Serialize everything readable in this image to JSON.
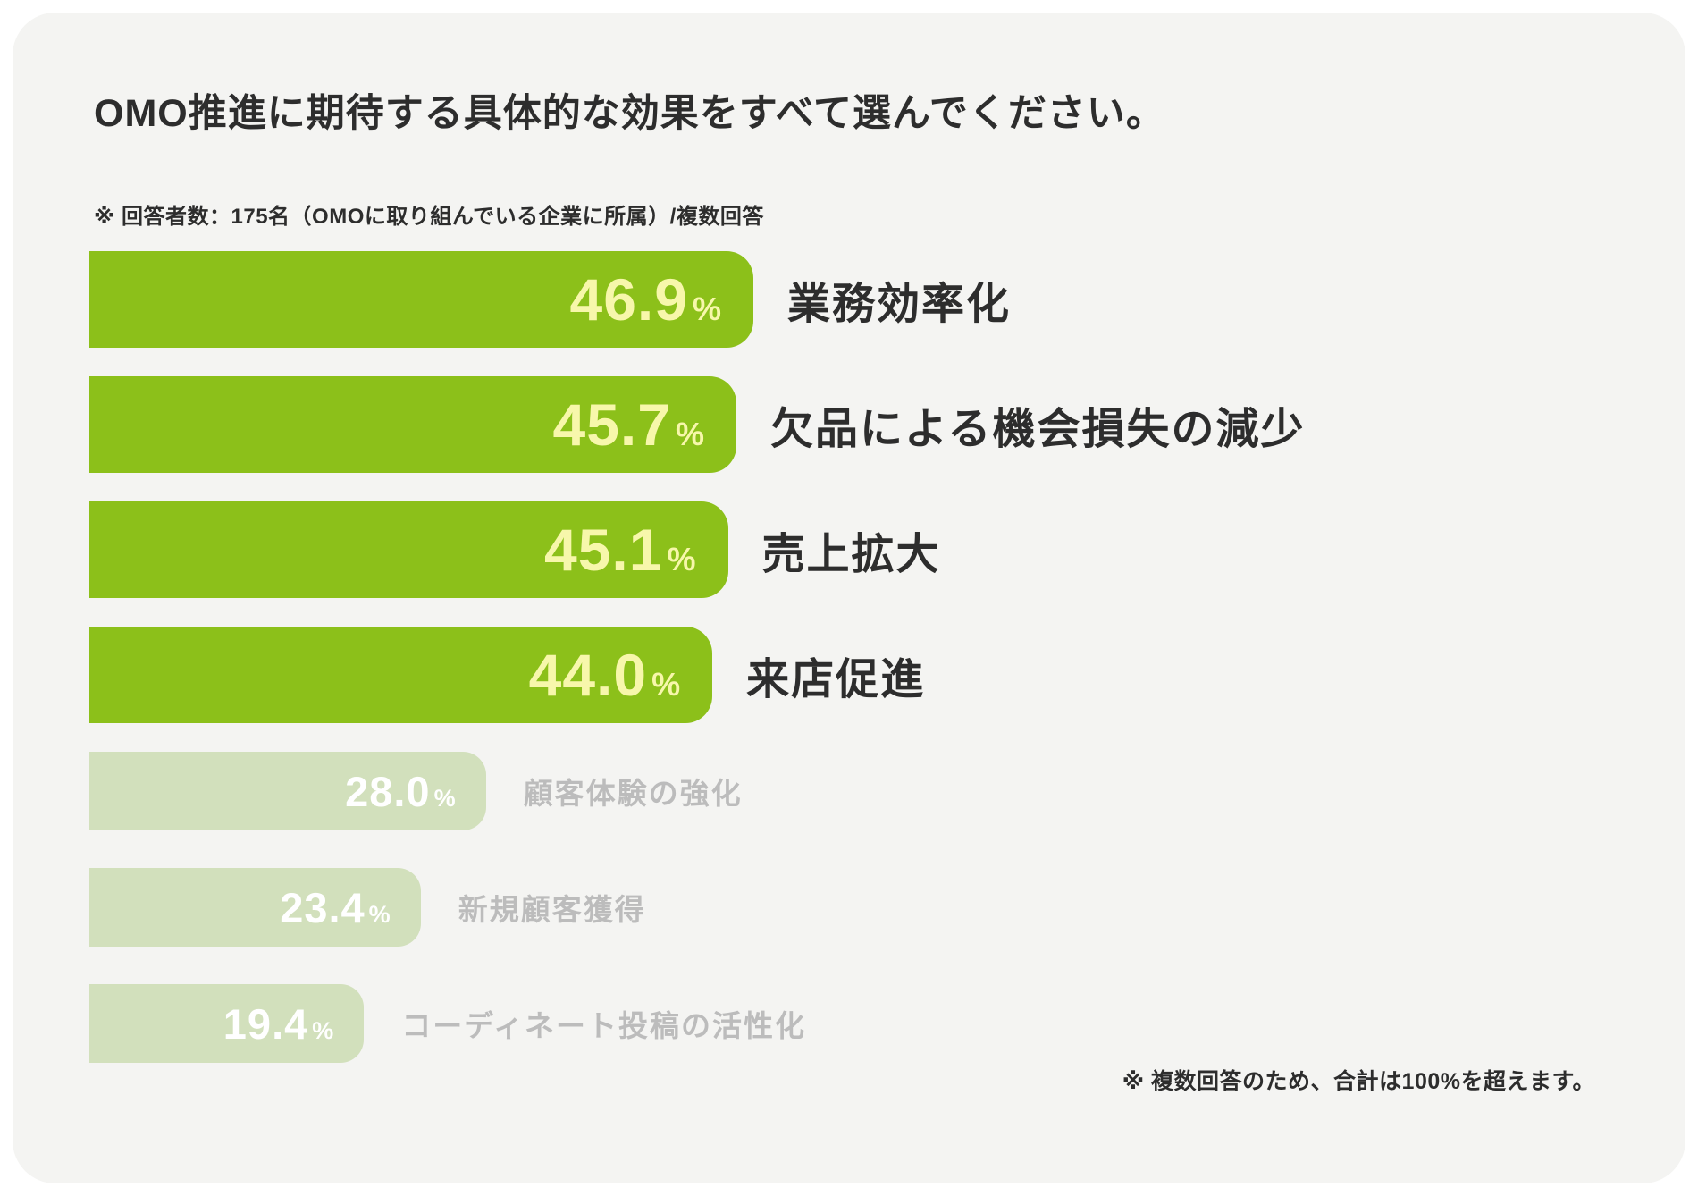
{
  "title": "OMO推進に期待する具体的な効果をすべて選んでください。",
  "note_top": "※ 回答者数：175名（OMOに取り組んでいる企業に所属）/複数回答",
  "note_bottom": "※ 複数回答のため、合計は100%を超えます。",
  "colors": {
    "bar_active": "#8cc01a",
    "bar_inactive": "#d2e0bc",
    "value_active": "#f7f7ab",
    "value_inactive": "#ffffff",
    "label_active": "#2d2d2d",
    "label_inactive": "#bcbcbc",
    "card_background": "#f4f4f2",
    "page_background": "#ffffff"
  },
  "chart_data": {
    "type": "bar",
    "orientation": "horizontal",
    "title": "OMO推進に期待する具体的な効果をすべて選んでください。",
    "subtitle": "※ 回答者数：175名（OMOに取り組んでいる企業に所属）/複数回答",
    "footnote": "※ 複数回答のため、合計は100%を超えます。",
    "unit": "%",
    "xlim": [
      0,
      46.9
    ],
    "grid": false,
    "legend": false,
    "categories": [
      "業務効率化",
      "欠品による機会損失の減少",
      "売上拡大",
      "来店促進",
      "顧客体験の強化",
      "新規顧客獲得",
      "コーディネート投稿の活性化"
    ],
    "values": [
      46.9,
      45.7,
      45.1,
      44.0,
      28.0,
      23.4,
      19.4
    ],
    "highlighted": [
      true,
      true,
      true,
      true,
      false,
      false,
      false
    ]
  },
  "bars": [
    {
      "value": "46.9",
      "unit": "%",
      "label": "業務効率化"
    },
    {
      "value": "45.7",
      "unit": "%",
      "label": "欠品による機会損失の減少"
    },
    {
      "value": "45.1",
      "unit": "%",
      "label": "売上拡大"
    },
    {
      "value": "44.0",
      "unit": "%",
      "label": "来店促進"
    },
    {
      "value": "28.0",
      "unit": "%",
      "label": "顧客体験の強化"
    },
    {
      "value": "23.4",
      "unit": "%",
      "label": "新規顧客獲得"
    },
    {
      "value": "19.4",
      "unit": "%",
      "label": "コーディネート投稿の活性化"
    }
  ]
}
